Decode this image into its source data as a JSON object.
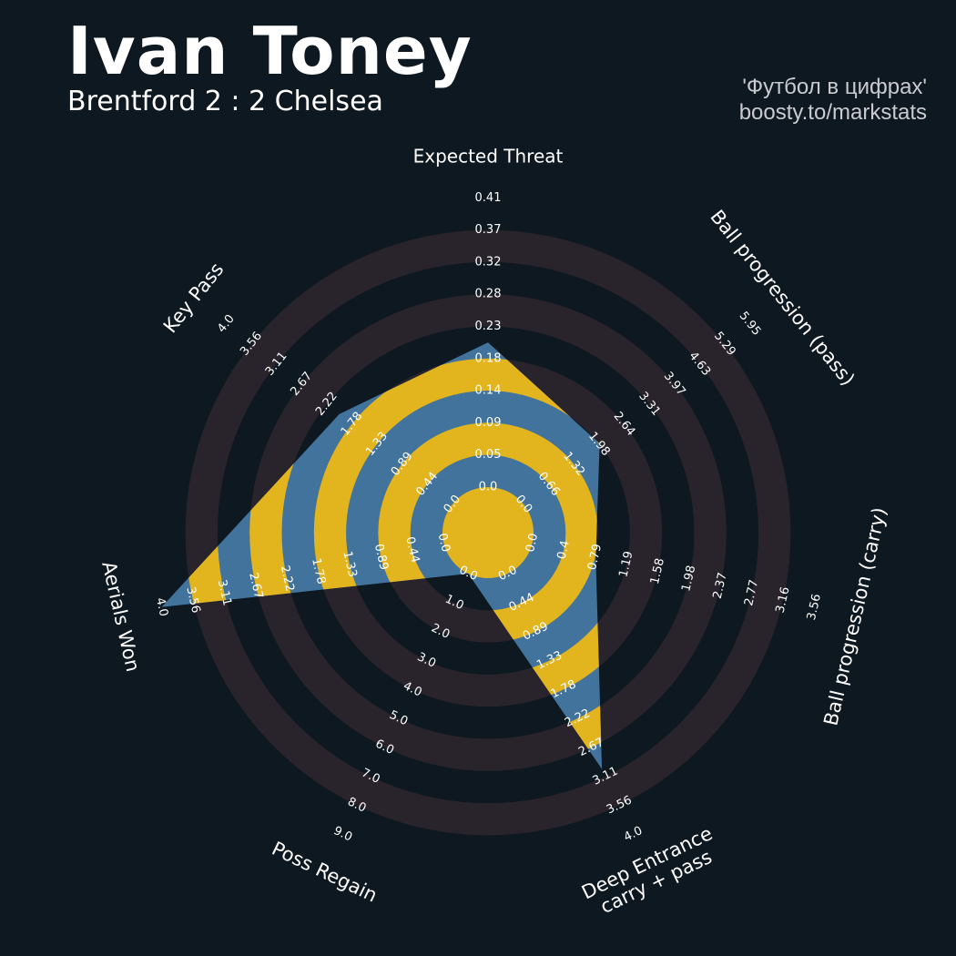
{
  "header": {
    "title": "Ivan Toney",
    "subtitle": "Brentford 2 : 2 Chelsea",
    "credit_line1": "'Футбол в цифрах'",
    "credit_line2": "boosty.to/markstats"
  },
  "colors": {
    "background": "#0e1820",
    "ring_band": "#29242b",
    "fill_blue": "#41739d",
    "fill_yellow": "#e2b41d",
    "text": "#ffffff"
  },
  "chart_data": {
    "type": "radar",
    "title": "Ivan Toney",
    "axes": [
      {
        "label": "Expected Threat",
        "value": 0.205,
        "ticks": [
          "0.0",
          "0.05",
          "0.09",
          "0.14",
          "0.18",
          "0.23",
          "0.28",
          "0.32",
          "0.37",
          "0.41"
        ]
      },
      {
        "label": "Ball progression (pass)",
        "value": 2.0,
        "ticks": [
          "0.0",
          "0.66",
          "1.32",
          "1.98",
          "2.64",
          "3.31",
          "3.97",
          "4.63",
          "5.29",
          "5.95"
        ]
      },
      {
        "label": "Ball progression (carry)",
        "value": 0.8,
        "ticks": [
          "0.0",
          "0.4",
          "0.79",
          "1.19",
          "1.58",
          "1.98",
          "2.37",
          "2.77",
          "3.16",
          "3.56"
        ]
      },
      {
        "label": "Deep Entrance\ncarry + pass",
        "value": 3.0,
        "ticks": [
          "0.0",
          "0.44",
          "0.89",
          "1.33",
          "1.78",
          "2.22",
          "2.67",
          "3.11",
          "3.56",
          "4.0"
        ]
      },
      {
        "label": "Poss Regain",
        "value": 0.0,
        "ticks": [
          "0.0",
          "1.0",
          "2.0",
          "3.0",
          "4.0",
          "5.0",
          "6.0",
          "7.0",
          "8.0",
          "9.0"
        ]
      },
      {
        "label": "Aerials Won",
        "value": 4.0,
        "ticks": [
          "0.0",
          "0.44",
          "0.89",
          "1.33",
          "1.78",
          "2.22",
          "2.67",
          "3.11",
          "3.56",
          "4.0"
        ]
      },
      {
        "label": "Key Pass",
        "value": 2.0,
        "ticks": [
          "0.0",
          "0.44",
          "0.89",
          "1.33",
          "1.78",
          "2.22",
          "2.67",
          "3.11",
          "3.56",
          "4.0"
        ]
      }
    ]
  }
}
